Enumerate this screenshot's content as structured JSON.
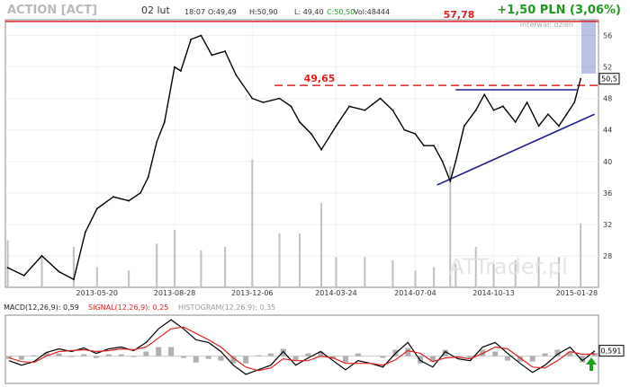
{
  "header": {
    "ticker": "ACTION [ACT]",
    "date": "02 lut",
    "time": "18:07",
    "open": "O:49,49",
    "high": "H:50,90",
    "low": "L: 49,40",
    "close": "C:50,50",
    "volume": "Vol:48444",
    "change": "+1,50 PLN (3,06%)",
    "interval": "Interwał: dzień"
  },
  "watermark": "ATTrader.pl",
  "colors": {
    "change": "#1f9a1f",
    "resistance": "#e02020",
    "trendline": "#1a1a8c",
    "price": "#000000",
    "volume": "#c0c0c0",
    "signal": "#e02020",
    "histogram": "#b0b0b0",
    "arrow": "#1aa31a",
    "highlight": "#7b8fd0"
  },
  "chart_data": [
    {
      "type": "line",
      "ylim": [
        24,
        58
      ],
      "y_ticks": [
        28,
        32,
        36,
        40,
        44,
        48,
        52,
        56
      ],
      "x_tick_labels": [
        "2013-05-20",
        "2013-08-28",
        "2013-12-06",
        "2014-03-24",
        "2014-07-04",
        "2014-10-13",
        "2015-01-28"
      ],
      "levels": [
        {
          "label": "57,78",
          "value": 57.78,
          "style": "solid"
        },
        {
          "label": "49,65",
          "value": 49.65,
          "style": "dashed"
        }
      ],
      "last_price_label": "50,5",
      "last_price": 50.5,
      "trendlines": [
        {
          "name": "resistance",
          "from": {
            "x": "2014-08-25",
            "y": 49.1
          },
          "to": {
            "x": "2015-01-28",
            "y": 49.1
          }
        },
        {
          "name": "support",
          "from": {
            "x": "2014-08-01",
            "y": 37.0
          },
          "to": {
            "x": "2015-02-20",
            "y": 46.0
          }
        }
      ],
      "series": [
        {
          "x": [
            "2013-01-25",
            "2013-02-15",
            "2013-03-10",
            "2013-04-01",
            "2013-04-20",
            "2013-05-05",
            "2013-05-20",
            "2013-06-10",
            "2013-06-30",
            "2013-07-15",
            "2013-07-25",
            "2013-08-05",
            "2013-08-15",
            "2013-08-28",
            "2013-09-05",
            "2013-09-18",
            "2013-10-01",
            "2013-10-15",
            "2013-11-01",
            "2013-11-15",
            "2013-12-06",
            "2013-12-20",
            "2014-01-10",
            "2014-01-25",
            "2014-02-05",
            "2014-02-20",
            "2014-03-05",
            "2014-03-24",
            "2014-04-10",
            "2014-04-30",
            "2014-05-20",
            "2014-06-05",
            "2014-06-20",
            "2014-07-04",
            "2014-07-15",
            "2014-07-28",
            "2014-08-08",
            "2014-08-18",
            "2014-08-25",
            "2014-09-05",
            "2014-09-20",
            "2014-10-01",
            "2014-10-13",
            "2014-10-25",
            "2014-11-10",
            "2014-11-25",
            "2014-12-10",
            "2014-12-22",
            "2015-01-05",
            "2015-01-15",
            "2015-01-25",
            "2015-02-02"
          ],
          "values": [
            26.5,
            25.5,
            28.0,
            26.0,
            25.0,
            31.0,
            34.0,
            35.5,
            35.0,
            36.0,
            38.0,
            42.5,
            45.0,
            52.0,
            51.5,
            55.5,
            56.0,
            53.5,
            54.0,
            51.0,
            48.0,
            47.5,
            48.0,
            47.0,
            45.0,
            43.5,
            41.5,
            44.5,
            47.0,
            46.5,
            48.0,
            46.5,
            44.0,
            43.5,
            42.0,
            42.0,
            40.0,
            37.5,
            40.0,
            44.5,
            46.5,
            48.5,
            46.5,
            47.0,
            45.0,
            47.5,
            44.5,
            46.0,
            44.5,
            46.0,
            47.5,
            50.5
          ]
        }
      ],
      "volume_series": [
        {
          "x": [
            "2013-01-25",
            "2013-03-10",
            "2013-04-20",
            "2013-05-20",
            "2013-06-30",
            "2013-08-05",
            "2013-08-28",
            "2013-10-01",
            "2013-11-01",
            "2013-12-06",
            "2014-01-10",
            "2014-02-05",
            "2014-03-05",
            "2014-03-24",
            "2014-04-30",
            "2014-06-05",
            "2014-07-04",
            "2014-07-28",
            "2014-08-18",
            "2014-08-25",
            "2014-09-20",
            "2014-10-13",
            "2014-11-10",
            "2014-12-10",
            "2015-01-05",
            "2015-02-02"
          ],
          "values": [
            14000,
            9000,
            12000,
            6000,
            5000,
            13000,
            17000,
            11000,
            12000,
            38000,
            16000,
            16000,
            25000,
            9000,
            9000,
            8000,
            5000,
            6000,
            36000,
            7000,
            12000,
            7000,
            8000,
            9000,
            9000,
            19000
          ]
        }
      ]
    },
    {
      "type": "line",
      "title": "MACD(12,26,9): 0,59",
      "last_value_label": "0,591",
      "legend": [
        "MACD(12,26,9): 0,59",
        "SIGNAL(12,26,9): 0,25",
        "HISTOGRAM(12,26,9): 0,35"
      ],
      "series": [
        {
          "name": "MACD(12,26,9)",
          "values": [
            -0.5,
            -1.0,
            -0.6,
            0.4,
            0.8,
            0.5,
            0.9,
            0.3,
            0.8,
            1.0,
            0.6,
            1.5,
            3.0,
            4.0,
            3.0,
            1.8,
            1.5,
            0.5,
            -1.0,
            -2.0,
            -1.5,
            -1.0,
            0.5,
            -1.0,
            -0.2,
            0.5,
            -0.5,
            -1.5,
            -0.5,
            -0.8,
            -1.2,
            0.3,
            1.5,
            -0.5,
            -1.2,
            0.5,
            -0.3,
            -0.5,
            1.0,
            1.5,
            0.3,
            -0.8,
            -1.8,
            -1.0,
            0.2,
            1.0,
            -0.5,
            0.59
          ]
        },
        {
          "name": "SIGNAL(12,26,9)",
          "values": [
            -0.2,
            -0.6,
            -0.7,
            0.0,
            0.5,
            0.6,
            0.7,
            0.5,
            0.6,
            0.8,
            0.7,
            1.0,
            2.0,
            3.0,
            3.2,
            2.5,
            1.8,
            1.0,
            -0.2,
            -1.2,
            -1.6,
            -1.3,
            -0.3,
            -0.5,
            -0.5,
            0.0,
            -0.2,
            -0.8,
            -0.8,
            -0.8,
            -1.0,
            -0.4,
            0.6,
            0.3,
            -0.6,
            -0.2,
            -0.1,
            -0.3,
            0.3,
            1.0,
            0.8,
            -0.2,
            -1.2,
            -1.3,
            -0.5,
            0.5,
            0.2,
            0.25
          ]
        },
        {
          "name": "HISTOGRAM(12,26,9)",
          "values": [
            -0.3,
            -0.4,
            0.1,
            0.4,
            0.3,
            -0.1,
            0.2,
            -0.2,
            0.2,
            0.2,
            -0.1,
            0.5,
            1.0,
            1.0,
            -0.2,
            -0.7,
            -0.3,
            -0.5,
            -0.8,
            -0.8,
            0.1,
            0.3,
            0.8,
            -0.5,
            0.3,
            0.5,
            -0.3,
            -0.7,
            0.3,
            0.0,
            -0.2,
            0.7,
            0.9,
            -0.8,
            -0.6,
            0.7,
            -0.2,
            -0.2,
            0.7,
            0.5,
            -0.5,
            -0.6,
            -0.6,
            0.3,
            0.7,
            0.5,
            -0.7,
            0.35
          ]
        }
      ]
    }
  ]
}
